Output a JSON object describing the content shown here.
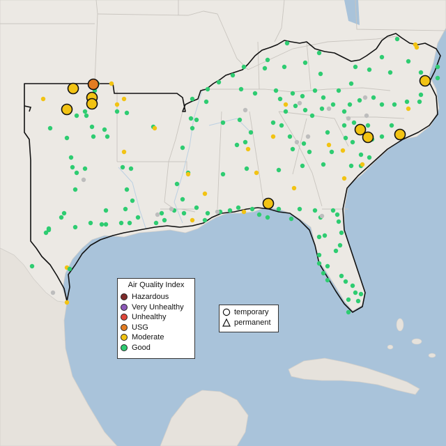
{
  "legend": {
    "title": "Air Quality Index",
    "items": [
      {
        "label": "Hazardous",
        "color": "#7e2b2b"
      },
      {
        "label": "Very Unhealthy",
        "color": "#8c59b8"
      },
      {
        "label": "Unhealthy",
        "color": "#e0473a"
      },
      {
        "label": "USG",
        "color": "#e37d22"
      },
      {
        "label": "Moderate",
        "color": "#f2c313"
      },
      {
        "label": "Good",
        "color": "#2ecc71"
      }
    ]
  },
  "shape_legend": {
    "items": [
      {
        "label": "temporary",
        "icon": "circle-icon"
      },
      {
        "label": "permanent",
        "icon": "triangle-icon"
      }
    ]
  },
  "colors": {
    "water": "#a9c3da",
    "land": "#ece9e4",
    "no_data": "#bdbdbd",
    "boundary": "#111111"
  }
}
